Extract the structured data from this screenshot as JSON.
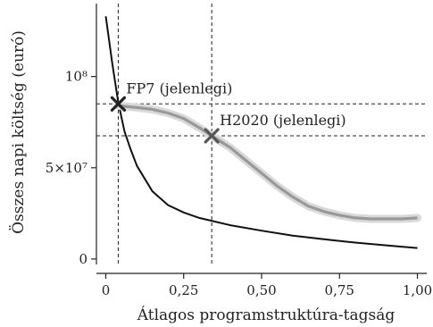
{
  "chart_data": {
    "type": "line",
    "xlabel": "Átlagos programstruktúra-tagság",
    "ylabel": "Összes napi költség (euró)",
    "xlim": [
      -0.03,
      1.03
    ],
    "ylim": [
      -3000000,
      140000000
    ],
    "x_ticks": [
      0,
      0.25,
      0.5,
      0.75,
      1.0
    ],
    "x_tick_labels": [
      "0",
      "0,25",
      "0,50",
      "0,75",
      "1,00"
    ],
    "y_ticks": [
      0,
      50000000,
      100000000
    ],
    "y_tick_labels": [
      "0",
      "5×10⁷",
      "10⁸"
    ],
    "series": [
      {
        "style": "black-line",
        "x": [
          0,
          0.02,
          0.04,
          0.06,
          0.08,
          0.1,
          0.15,
          0.2,
          0.25,
          0.3,
          0.35,
          0.4,
          0.5,
          0.6,
          0.7,
          0.8,
          0.9,
          1.0
        ],
        "y": [
          133000000,
          108000000,
          86000000,
          70000000,
          60000000,
          51000000,
          37000000,
          29500000,
          25500000,
          22500000,
          20500000,
          18500000,
          15500000,
          12800000,
          10800000,
          9000000,
          7500000,
          6000000
        ]
      },
      {
        "style": "gray-band-line",
        "x": [
          0.04,
          0.1,
          0.15,
          0.2,
          0.25,
          0.3,
          0.34,
          0.4,
          0.45,
          0.5,
          0.55,
          0.6,
          0.65,
          0.7,
          0.75,
          0.8,
          0.85,
          0.9,
          0.95,
          1.0
        ],
        "y": [
          84000000,
          83000000,
          82000000,
          80000000,
          77000000,
          72000000,
          67500000,
          61000000,
          54000000,
          47000000,
          40000000,
          34000000,
          29000000,
          26000000,
          24000000,
          22500000,
          22000000,
          22000000,
          22000000,
          22500000
        ]
      }
    ],
    "annotations": [
      {
        "label": "FP7 (jelenlegi)",
        "x": 0.04,
        "y": 85000000
      },
      {
        "label": "H2020 (jelenlegi)",
        "x": 0.34,
        "y": 67500000
      }
    ]
  }
}
